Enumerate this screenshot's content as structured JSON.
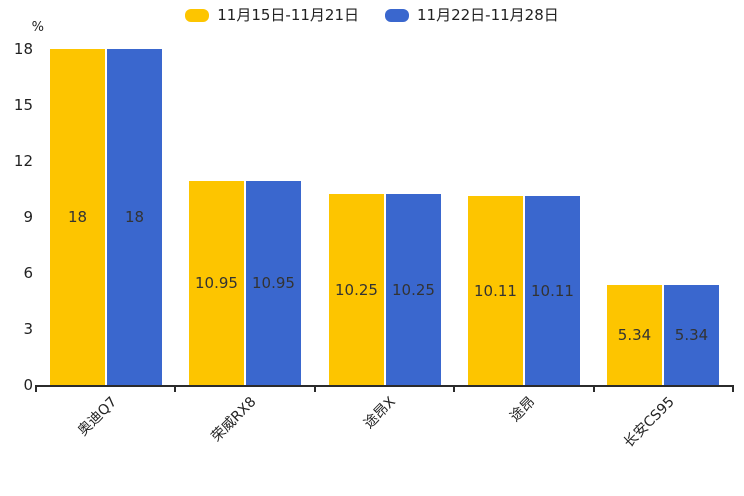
{
  "chart_data": {
    "type": "bar",
    "categories": [
      "奥迪Q7",
      "荣威RX8",
      "途昂X",
      "途昂",
      "长安CS95"
    ],
    "series": [
      {
        "name": "11月15日-11月21日",
        "color": "#FDC500",
        "values": [
          18,
          10.95,
          10.25,
          10.11,
          5.34
        ]
      },
      {
        "name": "11月22日-11月28日",
        "color": "#3A67CE",
        "values": [
          18,
          10.95,
          10.25,
          10.11,
          5.34
        ]
      }
    ],
    "title": "",
    "xlabel": "",
    "ylabel": "%",
    "yticks": [
      0,
      3,
      6,
      9,
      12,
      15,
      18
    ],
    "ylim": [
      0,
      18
    ],
    "grid": false,
    "legend_position": "top",
    "bar_labels_inside": true,
    "label_color": "#333333",
    "axis_color": "#2b2b2b",
    "background": "#ffffff"
  }
}
